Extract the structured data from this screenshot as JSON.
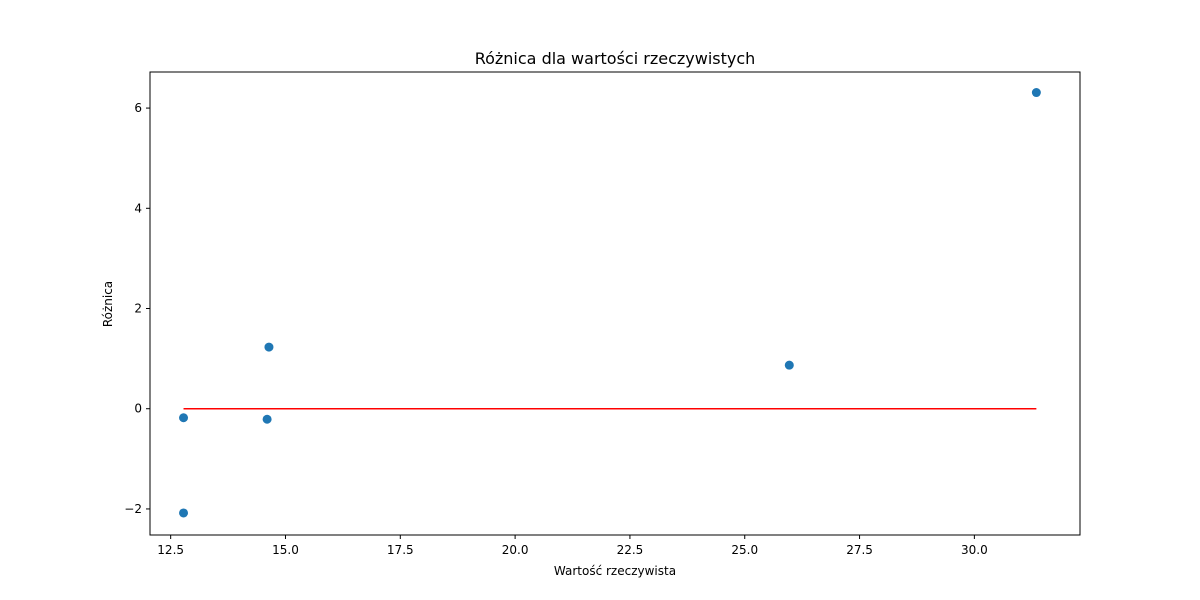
{
  "chart_data": {
    "type": "scatter",
    "title": "Różnica dla wartości rzeczywistych",
    "xlabel": "Wartość rzeczywista",
    "ylabel": "Różnica",
    "xlim": [
      12.05,
      32.3
    ],
    "ylim": [
      -2.52,
      6.72
    ],
    "xticks": [
      12.5,
      15.0,
      17.5,
      20.0,
      22.5,
      25.0,
      27.5,
      30.0
    ],
    "xtick_labels": [
      "12.5",
      "15.0",
      "17.5",
      "20.0",
      "22.5",
      "25.0",
      "27.5",
      "30.0"
    ],
    "yticks": [
      -2,
      0,
      2,
      4,
      6
    ],
    "ytick_labels": [
      "−2",
      "0",
      "2",
      "4",
      "6"
    ],
    "grid": false,
    "series": [
      {
        "kind": "scatter",
        "color": "#1f77b4",
        "points": [
          {
            "x": 12.78,
            "y": -0.18
          },
          {
            "x": 12.78,
            "y": -2.08
          },
          {
            "x": 14.6,
            "y": -0.21
          },
          {
            "x": 14.64,
            "y": 1.23
          },
          {
            "x": 25.97,
            "y": 0.87
          },
          {
            "x": 31.35,
            "y": 6.31
          }
        ]
      },
      {
        "kind": "line",
        "color": "#ff0000",
        "points": [
          {
            "x": 12.78,
            "y": 0
          },
          {
            "x": 31.35,
            "y": 0
          }
        ]
      }
    ]
  }
}
